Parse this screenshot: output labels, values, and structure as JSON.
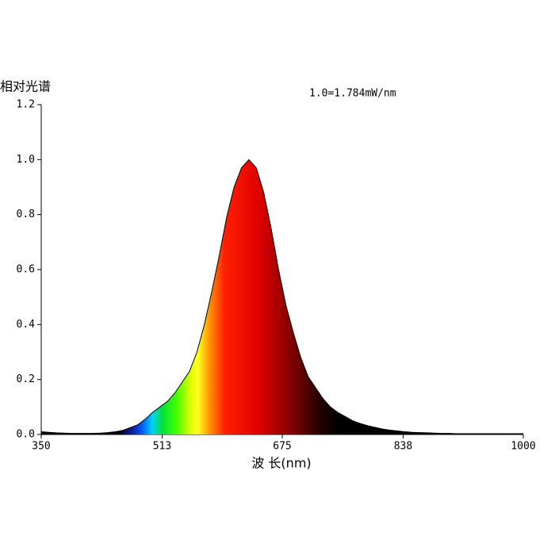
{
  "chart_data": {
    "type": "area",
    "y_label": "相对光谱",
    "annotation": "1.0=1.784mW/nm",
    "x_label": "波 长(nm)",
    "x": [
      350,
      360,
      370,
      380,
      390,
      400,
      410,
      420,
      430,
      440,
      450,
      460,
      470,
      480,
      490,
      500,
      510,
      520,
      530,
      540,
      550,
      560,
      570,
      580,
      590,
      600,
      610,
      620,
      630,
      640,
      650,
      660,
      670,
      680,
      690,
      700,
      710,
      720,
      730,
      740,
      750,
      760,
      770,
      780,
      790,
      800,
      810,
      820,
      830,
      840,
      850,
      860,
      870,
      880,
      890,
      900,
      910,
      920,
      930,
      940,
      950,
      960,
      970,
      980,
      990,
      1000
    ],
    "values": [
      0.01,
      0.008,
      0.006,
      0.005,
      0.004,
      0.004,
      0.004,
      0.004,
      0.005,
      0.007,
      0.01,
      0.015,
      0.025,
      0.035,
      0.055,
      0.08,
      0.1,
      0.12,
      0.15,
      0.19,
      0.23,
      0.3,
      0.4,
      0.52,
      0.65,
      0.79,
      0.9,
      0.97,
      1.0,
      0.97,
      0.88,
      0.75,
      0.6,
      0.47,
      0.37,
      0.28,
      0.21,
      0.17,
      0.13,
      0.1,
      0.08,
      0.065,
      0.05,
      0.04,
      0.032,
      0.026,
      0.02,
      0.016,
      0.013,
      0.01,
      0.008,
      0.007,
      0.006,
      0.005,
      0.004,
      0.004,
      0.003,
      0.003,
      0.003,
      0.003,
      0.003,
      0.003,
      0.003,
      0.003,
      0.003,
      0.003
    ],
    "xlim": [
      350,
      1000
    ],
    "xticks": [
      350,
      513,
      675,
      838,
      1000
    ],
    "ylim": [
      0,
      1.2
    ],
    "yticks": [
      {
        "value": 0,
        "label": "0.0"
      },
      0.2,
      0.4,
      0.6,
      0.8,
      {
        "value": 1,
        "label": "1.0"
      },
      1.2
    ]
  }
}
